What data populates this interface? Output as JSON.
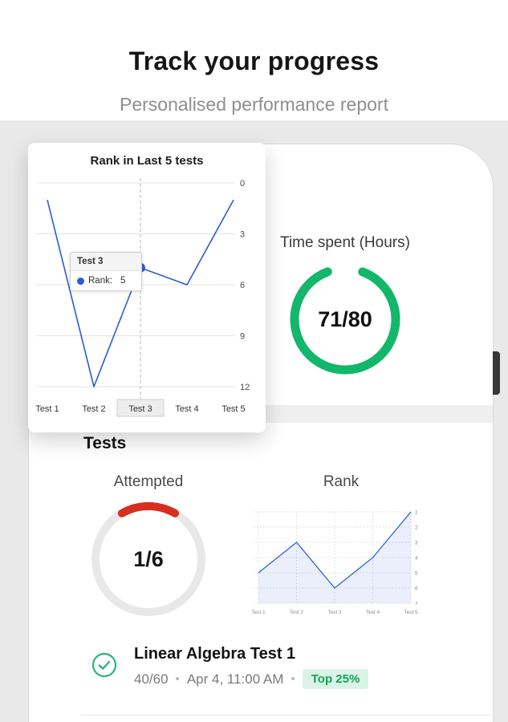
{
  "header": {
    "title": "Track your progress",
    "subtitle": "Personalised performance report"
  },
  "popup": {
    "title": "Rank in Last 5 tests",
    "tooltip": {
      "title": "Test 3",
      "label": "Rank:",
      "value": "5"
    }
  },
  "phone": {
    "time_spent_label": "Time spent (Hours)",
    "tests_heading": "Tests",
    "attempted_label": "Attempted",
    "rank_label": "Rank",
    "test_item": {
      "title": "Linear Algebra Test 1",
      "score": "40/60",
      "dot": "•",
      "datetime": "Apr 4, 11:00 AM",
      "badge": "Top 25%"
    }
  },
  "colors": {
    "accent_blue": "#2b5cd6",
    "success_green": "#12b76a",
    "alert_red": "#d92d20",
    "badge_green_text": "#16a05c",
    "badge_green_bg": "#d9f4e6"
  },
  "chart_data": [
    {
      "id": "rank_last5",
      "type": "line",
      "title": "Rank in Last 5 tests",
      "categories": [
        "Test 1",
        "Test 2",
        "Test 3",
        "Test 4",
        "Test 5"
      ],
      "values": [
        1,
        12,
        5,
        6,
        1
      ],
      "ylim": [
        0,
        12
      ],
      "y_ticks": [
        0,
        3,
        6,
        9,
        12
      ],
      "y_inverted": true,
      "axis_side": "right",
      "grid": "solid",
      "line_color": "#2b5cd6",
      "highlight_index": 2,
      "highlight_tooltip": "Test 3 / Rank: 5"
    },
    {
      "id": "rank_mini",
      "type": "line",
      "title": "Rank",
      "categories": [
        "Test 1",
        "Test 2",
        "Test 3",
        "Test 4",
        "Test 5"
      ],
      "values": [
        5,
        3,
        6,
        4,
        1
      ],
      "ylim": [
        1,
        7
      ],
      "y_ticks": [
        1,
        2,
        3,
        4,
        5,
        6,
        7
      ],
      "y_inverted": true,
      "axis_side": "right",
      "grid": "dashed",
      "line_color": "#2e62d9",
      "area_fill": "rgba(46,98,217,0.10)"
    },
    {
      "id": "time_spent",
      "type": "donut",
      "title": "Time spent (Hours)",
      "value": 71,
      "max": 80,
      "label": "71/80",
      "color": "#12b76a"
    },
    {
      "id": "attempted",
      "type": "donut",
      "title": "Attempted",
      "value": 1,
      "max": 6,
      "label": "1/6",
      "color": "#d92d20",
      "track_color": "#e8e8e8"
    }
  ]
}
